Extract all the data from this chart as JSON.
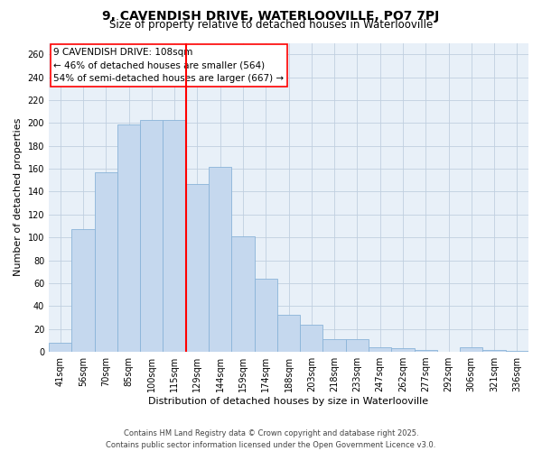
{
  "title": "9, CAVENDISH DRIVE, WATERLOOVILLE, PO7 7PJ",
  "subtitle": "Size of property relative to detached houses in Waterlooville",
  "xlabel": "Distribution of detached houses by size in Waterlooville",
  "ylabel": "Number of detached properties",
  "categories": [
    "41sqm",
    "56sqm",
    "70sqm",
    "85sqm",
    "100sqm",
    "115sqm",
    "129sqm",
    "144sqm",
    "159sqm",
    "174sqm",
    "188sqm",
    "203sqm",
    "218sqm",
    "233sqm",
    "247sqm",
    "262sqm",
    "277sqm",
    "292sqm",
    "306sqm",
    "321sqm",
    "336sqm"
  ],
  "values": [
    8,
    107,
    157,
    199,
    203,
    203,
    147,
    162,
    101,
    64,
    32,
    24,
    11,
    11,
    4,
    3,
    2,
    0,
    4,
    2,
    1
  ],
  "bar_color": "#c5d8ee",
  "bar_edge_color": "#8ab4d8",
  "annotation_title": "9 CAVENDISH DRIVE: 108sqm",
  "annotation_line1": "← 46% of detached houses are smaller (564)",
  "annotation_line2": "54% of semi-detached houses are larger (667) →",
  "ylim": [
    0,
    270
  ],
  "yticks": [
    0,
    20,
    40,
    60,
    80,
    100,
    120,
    140,
    160,
    180,
    200,
    220,
    240,
    260
  ],
  "redline_x": 5.5,
  "footer_line1": "Contains HM Land Registry data © Crown copyright and database right 2025.",
  "footer_line2": "Contains public sector information licensed under the Open Government Licence v3.0.",
  "plot_bg_color": "#e8f0f8",
  "fig_bg_color": "#ffffff",
  "grid_color": "#c0cfe0",
  "title_fontsize": 10,
  "subtitle_fontsize": 8.5,
  "axis_label_fontsize": 8,
  "tick_fontsize": 7,
  "footer_fontsize": 6
}
